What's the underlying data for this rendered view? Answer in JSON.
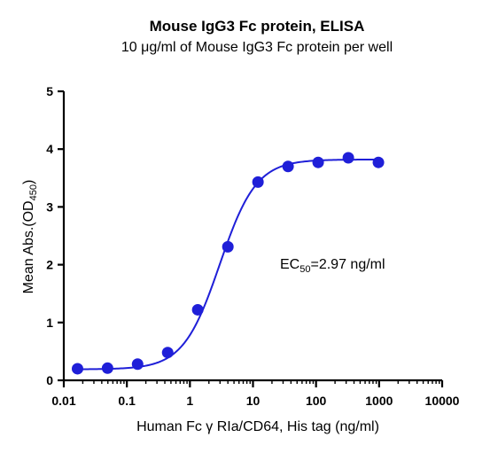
{
  "chart_data": {
    "type": "scatter",
    "title": "Mouse IgG3 Fc protein, ELISA",
    "subtitle": "10 μg/ml of Mouse IgG3 Fc protein per well",
    "xlabel": "Human Fc γ RIa/CD64, His tag (ng/ml)",
    "ylabel_main": "Mean Abs.(OD",
    "ylabel_sub": "450",
    "ylabel_end": ")",
    "x_scale": "log",
    "xlim": [
      0.01,
      10000
    ],
    "ylim": [
      0,
      5
    ],
    "x_ticks": [
      0.01,
      0.1,
      1,
      10,
      100,
      1000,
      10000
    ],
    "x_tick_labels": [
      "0.01",
      "0.1",
      "1",
      "10",
      "100",
      "1000",
      "10000"
    ],
    "y_ticks": [
      0,
      1,
      2,
      3,
      4,
      5
    ],
    "y_tick_labels": [
      "0",
      "1",
      "2",
      "3",
      "4",
      "5"
    ],
    "grid": false,
    "series": [
      {
        "x": [
          0.0165,
          0.0494,
          0.148,
          0.444,
          1.33,
          4.0,
          12.0,
          36.0,
          108,
          325,
          975
        ],
        "y": [
          0.2,
          0.21,
          0.28,
          0.48,
          1.22,
          2.31,
          3.43,
          3.7,
          3.77,
          3.85,
          3.77
        ],
        "color": "#1f1fd8"
      }
    ],
    "fit": {
      "model": "4PL",
      "bottom": 0.19,
      "top": 3.82,
      "ec50": 2.97,
      "hill": 1.5,
      "color": "#1f1fd8"
    },
    "annotation": {
      "prefix": "EC",
      "sub": "50",
      "suffix": "=2.97 ng/ml"
    }
  }
}
